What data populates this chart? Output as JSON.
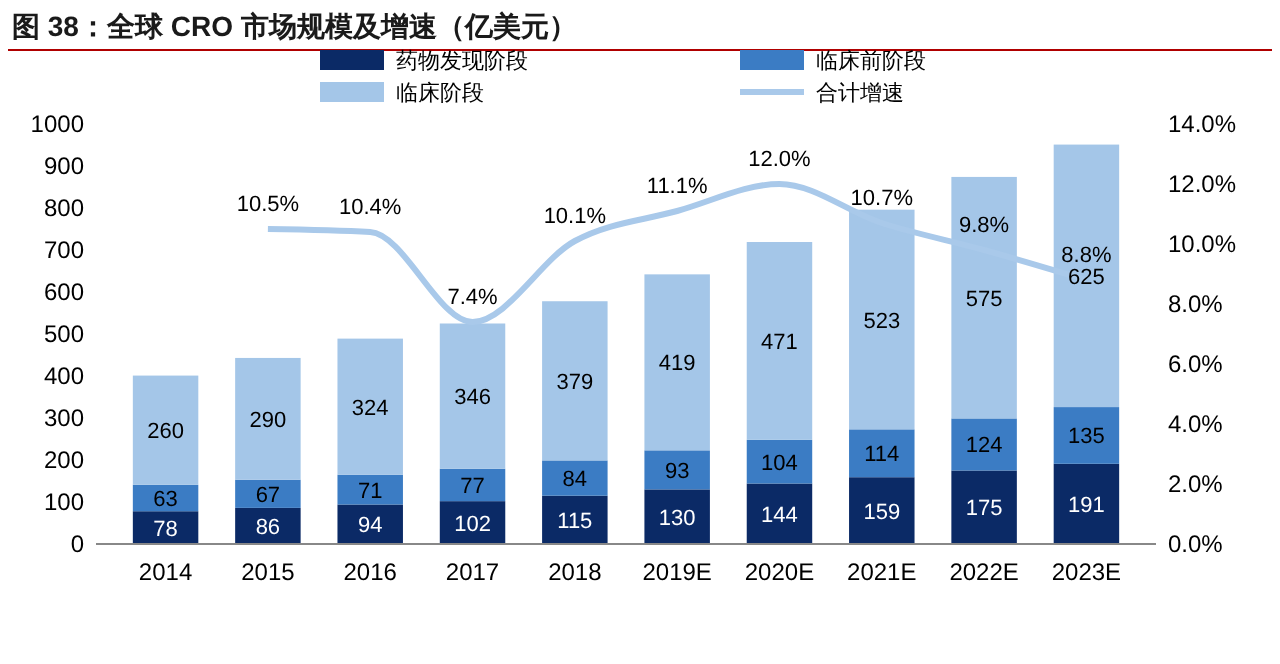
{
  "chart_data": {
    "type": "bar",
    "title": "图 38：全球 CRO 市场规模及增速（亿美元）",
    "stacked": true,
    "data_labels": true,
    "legend": "top",
    "grid": false,
    "categories": [
      "2014",
      "2015",
      "2016",
      "2017",
      "2018",
      "2019E",
      "2020E",
      "2021E",
      "2022E",
      "2023E"
    ],
    "series": [
      {
        "name": "药物发现阶段",
        "color": "#0b2a66",
        "values": [
          78,
          86,
          94,
          102,
          115,
          130,
          144,
          159,
          175,
          191
        ]
      },
      {
        "name": "临床前阶段",
        "color": "#3b7cc4",
        "values": [
          63,
          67,
          71,
          77,
          84,
          93,
          104,
          114,
          124,
          135
        ]
      },
      {
        "name": "临床阶段",
        "color": "#a4c6e8",
        "values": [
          260,
          290,
          324,
          346,
          379,
          419,
          471,
          523,
          575,
          625
        ]
      },
      {
        "name": "合计增速",
        "type": "line",
        "axis": "y2",
        "color": "#a9c9ea",
        "marker": "none",
        "values": [
          null,
          10.5,
          10.4,
          7.4,
          10.1,
          11.1,
          12.0,
          10.7,
          9.8,
          8.8
        ],
        "value_labels": [
          null,
          "10.5%",
          "10.4%",
          "7.4%",
          "10.1%",
          "11.1%",
          "12.0%",
          "10.7%",
          "9.8%",
          "8.8%"
        ]
      }
    ],
    "ylim": [
      0,
      1000
    ],
    "yticks": [
      0,
      100,
      200,
      300,
      400,
      500,
      600,
      700,
      800,
      900,
      1000
    ],
    "y2lim": [
      0,
      14
    ],
    "y2ticks": [
      {
        "value": 0,
        "label": "0.0%"
      },
      {
        "value": 2,
        "label": "2.0%"
      },
      {
        "value": 4,
        "label": "4.0%"
      },
      {
        "value": 6,
        "label": "6.0%"
      },
      {
        "value": 8,
        "label": "8.0%"
      },
      {
        "value": 10,
        "label": "10.0%"
      },
      {
        "value": 12,
        "label": "12.0%"
      },
      {
        "value": 14,
        "label": "14.0%"
      }
    ]
  }
}
